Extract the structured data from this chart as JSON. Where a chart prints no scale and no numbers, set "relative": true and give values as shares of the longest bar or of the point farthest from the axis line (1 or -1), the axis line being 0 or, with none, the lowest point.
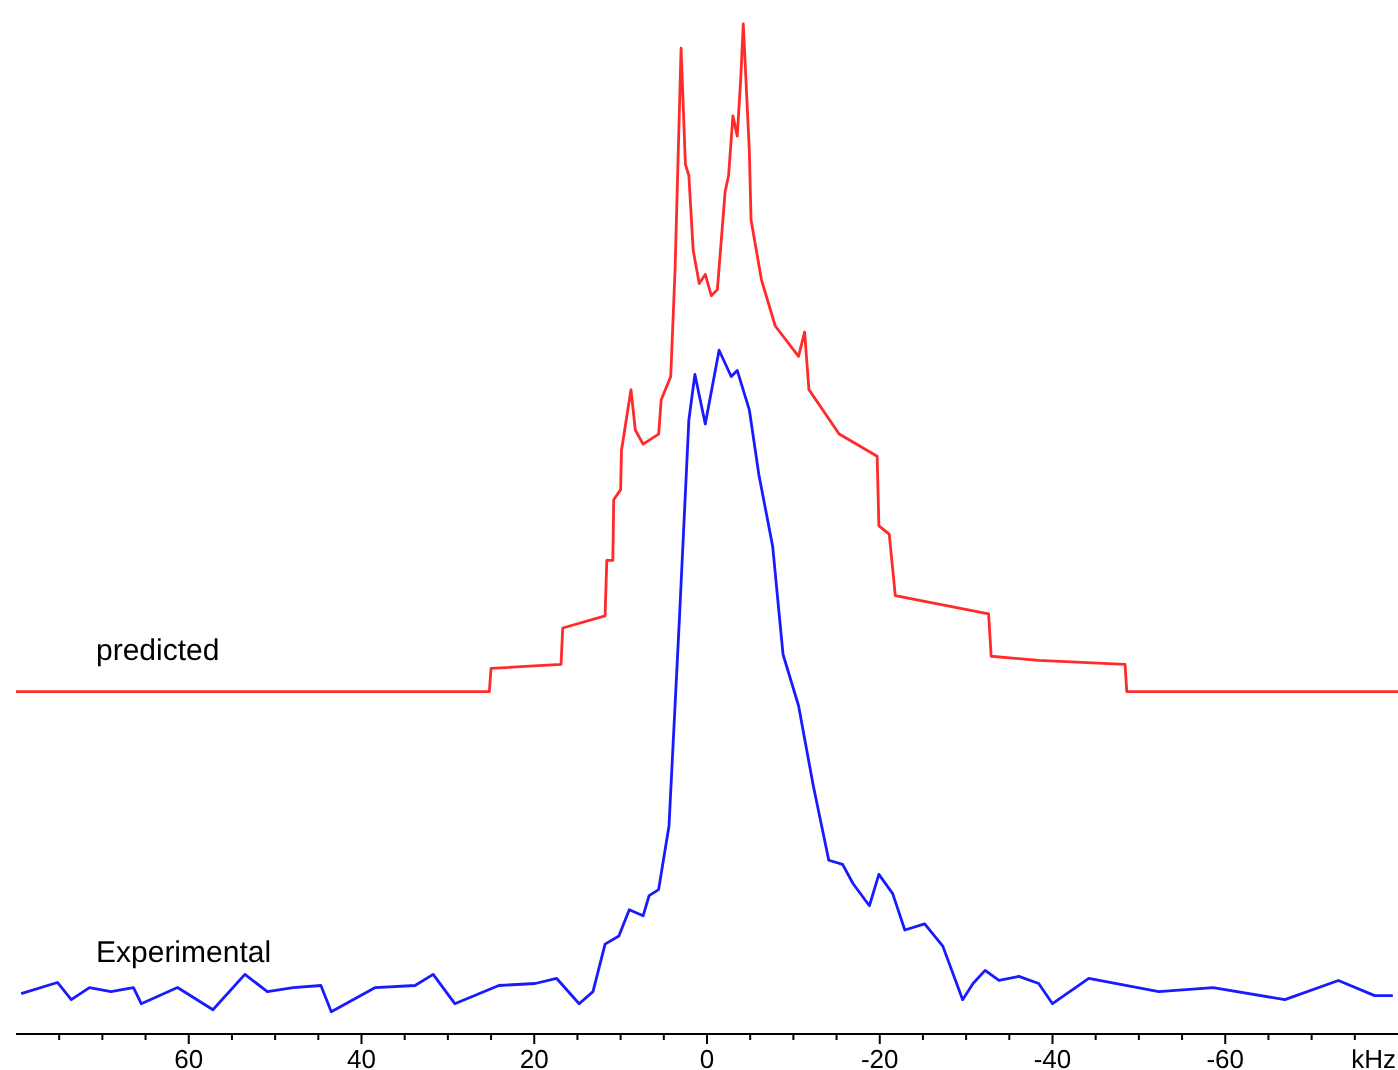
{
  "chart_data": {
    "type": "line",
    "relative": true,
    "xlabel": "kHz",
    "xlim": [
      80,
      -80
    ],
    "tick_labels": "x",
    "xticks": [
      {
        "value": 75,
        "label": null
      },
      {
        "value": 70,
        "label": null
      },
      {
        "value": 65,
        "label": null
      },
      60,
      {
        "value": 55,
        "label": null
      },
      {
        "value": 50,
        "label": null
      },
      {
        "value": 45,
        "label": null
      },
      40,
      {
        "value": 35,
        "label": null
      },
      {
        "value": 30,
        "label": null
      },
      {
        "value": 25,
        "label": null
      },
      20,
      {
        "value": 15,
        "label": null
      },
      {
        "value": 10,
        "label": null
      },
      {
        "value": 5,
        "label": null
      },
      0,
      {
        "value": -5,
        "label": null
      },
      {
        "value": -10,
        "label": null
      },
      {
        "value": -15,
        "label": null
      },
      -20,
      {
        "value": -25,
        "label": null
      },
      {
        "value": -30,
        "label": null
      },
      {
        "value": -35,
        "label": null
      },
      -40,
      {
        "value": -45,
        "label": null
      },
      {
        "value": -50,
        "label": null
      },
      {
        "value": -55,
        "label": null
      },
      -60,
      {
        "value": -65,
        "label": null
      },
      {
        "value": -70,
        "label": null
      },
      {
        "value": -75,
        "label": null
      }
    ],
    "series": [
      {
        "name": "predicted",
        "color": "#ff2b2b",
        "x": [
          80,
          25.2,
          25.0,
          16.9,
          16.7,
          11.8,
          11.6,
          10.9,
          10.8,
          10.0,
          9.9,
          8.8,
          8.3,
          7.4,
          5.6,
          5.3,
          4.2,
          3.7,
          3.0,
          2.5,
          2.1,
          1.6,
          0.9,
          0.2,
          -0.5,
          -1.2,
          -2.1,
          -2.5,
          -3.0,
          -3.5,
          -3.9,
          -4.2,
          -4.9,
          -5.1,
          -6.3,
          -7.9,
          -10.6,
          -11.3,
          -11.8,
          -15.3,
          -19.7,
          -19.9,
          -21.1,
          -21.8,
          -32.6,
          -32.9,
          -38.4,
          -48.4,
          -48.6,
          -80
        ],
        "values": [
          0.339,
          0.339,
          0.362,
          0.366,
          0.402,
          0.414,
          0.469,
          0.469,
          0.529,
          0.539,
          0.578,
          0.638,
          0.598,
          0.584,
          0.594,
          0.628,
          0.651,
          0.756,
          0.976,
          0.861,
          0.85,
          0.776,
          0.743,
          0.752,
          0.731,
          0.737,
          0.834,
          0.85,
          0.909,
          0.889,
          0.945,
          1,
          0.875,
          0.806,
          0.747,
          0.701,
          0.671,
          0.695,
          0.638,
          0.594,
          0.572,
          0.503,
          0.495,
          0.434,
          0.416,
          0.374,
          0.37,
          0.366,
          0.339,
          0.339
        ]
      },
      {
        "name": "Experimental",
        "color": "#1a1aff",
        "x": [
          79.4,
          75.2,
          73.6,
          71.5,
          69.0,
          66.4,
          65.5,
          61.3,
          57.2,
          53.5,
          50.9,
          47.9,
          44.7,
          43.5,
          38.4,
          33.8,
          31.7,
          29.2,
          24.1,
          19.9,
          17.4,
          14.8,
          13.2,
          11.8,
          10.2,
          9.0,
          7.4,
          6.7,
          5.6,
          4.4,
          3.2,
          2.1,
          1.4,
          0.2,
          -1.4,
          -2.8,
          -3.5,
          -4.9,
          -6.0,
          -7.6,
          -8.8,
          -10.6,
          -12.3,
          -14.1,
          -15.7,
          -16.9,
          -18.8,
          -19.9,
          -21.5,
          -22.9,
          -25.2,
          -27.3,
          -29.6,
          -30.8,
          -32.2,
          -33.8,
          -36.1,
          -38.4,
          -40.0,
          -44.2,
          -52.3,
          -58.6,
          -66.9,
          -73.1,
          -77.3,
          -79.4
        ],
        "values": [
          0.04,
          0.051,
          0.034,
          0.046,
          0.042,
          0.046,
          0.03,
          0.046,
          0.024,
          0.059,
          0.042,
          0.046,
          0.048,
          0.022,
          0.046,
          0.048,
          0.059,
          0.03,
          0.048,
          0.05,
          0.055,
          0.03,
          0.042,
          0.089,
          0.097,
          0.123,
          0.117,
          0.137,
          0.143,
          0.206,
          0.41,
          0.608,
          0.653,
          0.604,
          0.677,
          0.651,
          0.657,
          0.618,
          0.554,
          0.483,
          0.376,
          0.325,
          0.246,
          0.172,
          0.168,
          0.149,
          0.127,
          0.158,
          0.139,
          0.103,
          0.109,
          0.087,
          0.034,
          0.05,
          0.063,
          0.053,
          0.057,
          0.05,
          0.03,
          0.055,
          0.042,
          0.046,
          0.034,
          0.053,
          0.038,
          0.038
        ]
      }
    ]
  }
}
